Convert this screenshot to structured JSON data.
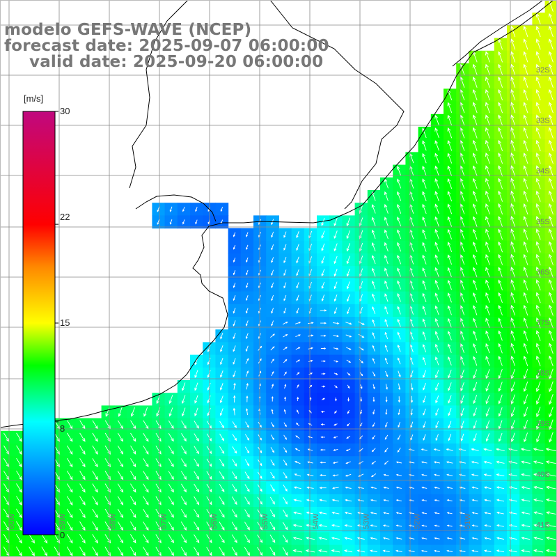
{
  "title": {
    "line1": "modelo GEFS-WAVE (NCEP)",
    "line2": "forecast date: 2025-09-07 06:00:00",
    "line3": "valid date: 2025-09-20 06:00:00"
  },
  "colorbar": {
    "unit": "[m/s]",
    "ticks": [
      "30",
      "22",
      "15",
      "8",
      "0"
    ],
    "tick_values": [
      30,
      22,
      15,
      8,
      0
    ],
    "vmin": 0,
    "vmax": 30,
    "stops": [
      {
        "value": 0,
        "color": "#0000ff"
      },
      {
        "value": 8,
        "color": "#00ffff"
      },
      {
        "value": 12,
        "color": "#00ff00"
      },
      {
        "value": 15,
        "color": "#ffff00"
      },
      {
        "value": 19,
        "color": "#ff8800"
      },
      {
        "value": 22,
        "color": "#ff0000"
      },
      {
        "value": 30,
        "color": "#c0087f"
      }
    ]
  },
  "axes": {
    "lat_labels": [
      "32S",
      "33S",
      "34S",
      "35S",
      "36S",
      "37S",
      "38S",
      "39S",
      "40S",
      "41S"
    ],
    "lon_labels": [
      "60W",
      "59W",
      "58W",
      "57W",
      "56W",
      "55W",
      "54W",
      "53W",
      "52W",
      "51W"
    ]
  },
  "colors": {
    "land": "#ffffff",
    "grid": "#888888",
    "coast": "#000000",
    "arrow": "#ffffff",
    "title": "#777777"
  }
}
